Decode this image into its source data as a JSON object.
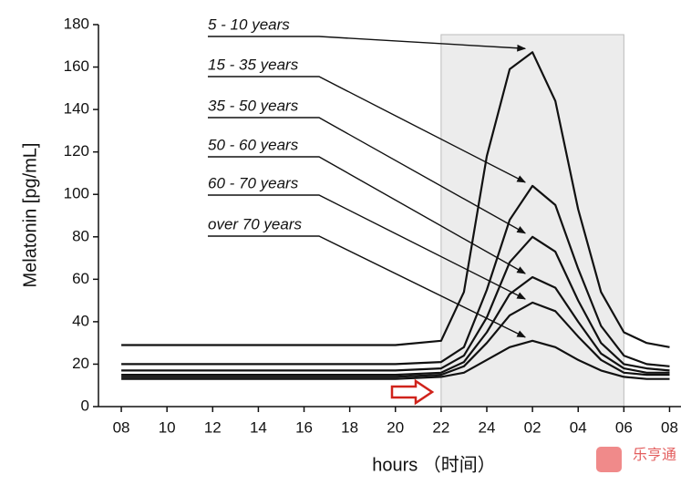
{
  "chart_data": {
    "type": "line",
    "y_label": "Melatonin [pg/mL]",
    "x_label": "hours （时间）",
    "watermark": "乐亨通",
    "x": [
      8,
      20,
      22,
      23,
      24,
      25,
      26,
      27,
      28,
      29,
      30,
      31,
      32
    ],
    "series": [
      {
        "name": "5 - 10 years",
        "color": "#111111",
        "values": [
          29,
          29,
          31,
          54,
          118,
          159,
          167,
          144,
          93,
          54,
          35,
          30,
          28
        ]
      },
      {
        "name": "15 - 35 years",
        "color": "#111111",
        "values": [
          20,
          20,
          21,
          28,
          55,
          88,
          104,
          95,
          65,
          38,
          24,
          20,
          19
        ]
      },
      {
        "name": "35 - 50 years",
        "color": "#111111",
        "values": [
          17,
          17,
          18,
          24,
          42,
          68,
          80,
          73,
          50,
          30,
          20,
          18,
          17
        ]
      },
      {
        "name": "50 - 60 years",
        "color": "#111111",
        "values": [
          15,
          15,
          16,
          21,
          35,
          53,
          61,
          56,
          40,
          25,
          18,
          16,
          16
        ]
      },
      {
        "name": "60 - 70 years",
        "color": "#111111",
        "values": [
          14,
          14,
          15,
          19,
          30,
          43,
          49,
          45,
          33,
          22,
          16,
          15,
          15
        ]
      },
      {
        "name": "over 70 years",
        "color": "#111111",
        "values": [
          13,
          13,
          14,
          16,
          22,
          28,
          31,
          28,
          22,
          17,
          14,
          13,
          13
        ]
      }
    ],
    "shaded_range": [
      22,
      30
    ],
    "xlim": [
      7,
      32.5
    ],
    "xticks": [
      {
        "value": 8,
        "label": "08"
      },
      10,
      12,
      14,
      16,
      18,
      20,
      22,
      24,
      {
        "value": 26,
        "label": "02"
      },
      {
        "value": 28,
        "label": "04"
      },
      {
        "value": 30,
        "label": "06"
      },
      {
        "value": 32,
        "label": "08"
      }
    ],
    "ylim": [
      0,
      180
    ],
    "yticks": [
      0,
      20,
      40,
      60,
      80,
      100,
      120,
      140,
      160,
      180
    ]
  }
}
